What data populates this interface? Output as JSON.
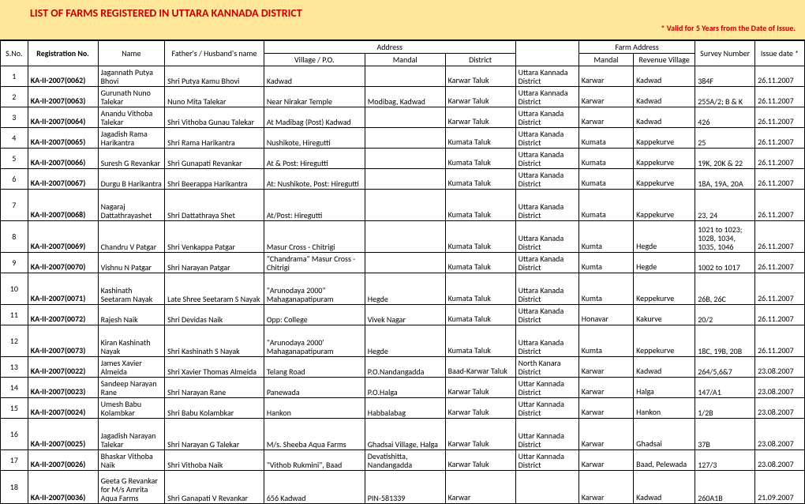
{
  "title": "LIST OF FARMS REGISTERED IN UTTARA KANNADA DISTRICT",
  "valid_note": "* Valid for 5 Years from the Date of Issue.",
  "headers": {
    "sno": "S.No.",
    "reg": "Registration No.",
    "name": "Name",
    "father": "Father's / Husband's name",
    "address": "Address",
    "village": "Village / P.O.",
    "mandal": "Mandal",
    "district": "District",
    "farm_address": "Farm Address",
    "farm_mandal": "Mandal",
    "rev_village": "Revenue Village",
    "survey": "Survey Number",
    "issue": "Issue date *"
  },
  "rows": [
    {
      "sno": "1",
      "reg": "KA-II-2007(0062)",
      "name": "Jagannath Putya Bhovi",
      "father": "Shri Putya Kamu Bhovi",
      "village": "Kadwad",
      "mandal": "",
      "district": "Karwar Taluk",
      "farm_district": "Uttara  Kannada District",
      "farm_mandal": "Karwar",
      "rev_village": "Kadwad",
      "survey": "384F",
      "issue": "26.11.2007"
    },
    {
      "sno": "2",
      "reg": "KA-II-2007(0063)",
      "name": "Gurunath Nuno Talekar",
      "father": "Nuno Mita Talekar",
      "village": "Near Nirakar Temple",
      "mandal": "Modibag, Kadwad",
      "district": "Karwar Taluk",
      "farm_district": "Uttara  Kannada District",
      "farm_mandal": "Karwar",
      "rev_village": "Kadwad",
      "survey": "255A/2; B & K",
      "issue": "26.11.2007"
    },
    {
      "sno": "3",
      "reg": "KA-II-2007(0064)",
      "name": "Anandu Vithoba Talekar",
      "father": "Shri Vithoba Gunau Talekar",
      "village": "At Madibag (Post) Kadwad",
      "mandal": "",
      "district": "Karwar Taluk",
      "farm_district": "Uttara  Kanada District",
      "farm_mandal": "Karwar",
      "rev_village": "Kadwad",
      "survey": "426",
      "issue": "26.11.2007"
    },
    {
      "sno": "4",
      "reg": "KA-II-2007(0065)",
      "name": "Jagadish Rama Harikantra",
      "father": "Shri Rama Harikantra",
      "village": "Nushikote, Hiregutti",
      "mandal": "",
      "district": "Kumata Taluk",
      "farm_district": "Uttara  Kanada District",
      "farm_mandal": "Kumata",
      "rev_village": "Kappekurve",
      "survey": "25",
      "issue": "26.11.2007"
    },
    {
      "sno": "5",
      "reg": "KA-II-2007(0066)",
      "name": "Suresh G Revankar",
      "father": "Shri Gunapati Revankar",
      "village": "At & Post: Hiregutti",
      "mandal": "",
      "district": "Kumata Taluk",
      "farm_district": "Uttara  Kanada District",
      "farm_mandal": "Kumata",
      "rev_village": "Kappekurve",
      "survey": "19K, 20K & 22",
      "issue": "26.11.2007"
    },
    {
      "sno": "6",
      "reg": "KA-II-2007(0067)",
      "name": "Durgu B Harikantra",
      "father": "Shri Beerappa Harikantra",
      "village": "At: Nushikote, Post: Hiregutti",
      "mandal": "",
      "district": "Kumata Taluk",
      "farm_district": "Uttara  Kanada District",
      "farm_mandal": "Kumata",
      "rev_village": "Kappekurve",
      "survey": "18A, 19A, 20A",
      "issue": "26.11.2007"
    },
    {
      "sno": "7",
      "reg": "KA-II-2007(0068)",
      "name": "Nagaraj Dattathrayashet",
      "father": "Shri Dattathraya Shet",
      "village": "At/Post: Hiregutti",
      "mandal": "",
      "district": "Kumata Taluk",
      "farm_district": "Uttara  Kanada District",
      "farm_mandal": "Kumata",
      "rev_village": "Kappekurve",
      "survey": "23, 24",
      "issue": "26.11.2007",
      "tall": true
    },
    {
      "sno": "8",
      "reg": "KA-II-2007(0069)",
      "name": "Chandru V Patgar",
      "father": "Shri Venkappa Patgar",
      "village": "Masur Cross - Chitrigi",
      "mandal": "",
      "district": "Kumata Taluk",
      "farm_district": "Uttara  Kanada District",
      "farm_mandal": "Kumta",
      "rev_village": "Hegde",
      "survey": "1021 to 1023; 1028, 1034, 1035, 1046",
      "issue": "26.11.2007",
      "tall": true
    },
    {
      "sno": "9",
      "reg": "KA-II-2007(0070)",
      "name": "Vishnu N Patgar",
      "father": "Shri Narayan Patgar",
      "village": "\"Chandrama\" Masur Cross - Chitrigi",
      "mandal": "",
      "district": "Kumata Taluk",
      "farm_district": "Uttara  Kanada District",
      "farm_mandal": "Kumta",
      "rev_village": "Hegde",
      "survey": "1002 to 1017",
      "issue": "26.11.2007"
    },
    {
      "sno": "10",
      "reg": "KA-II-2007(0071)",
      "name": "Kashinath Seetaram Nayak",
      "father": "Late Shree Seetaram S Nayak",
      "village": "\"Arunodaya 2000\" Mahaganapatipuram",
      "mandal": "Hegde",
      "district": "Kumata Taluk",
      "farm_district": "Uttara  Kanada District",
      "farm_mandal": "Kumta",
      "rev_village": "Keppekurve",
      "survey": "26B, 26C",
      "issue": "26.11.2007",
      "tall": true
    },
    {
      "sno": "11",
      "reg": "KA-II-2007(0072)",
      "name": "Rajesh Naik",
      "father": "Shri Devidas Naik",
      "village": "Opp: College",
      "mandal": "Vivek Nagar",
      "district": "Kumata Taluk",
      "farm_district": "Uttara  Kanada District",
      "farm_mandal": "Honavar",
      "rev_village": "Kakurve",
      "survey": "20/2",
      "issue": "26.11.2007"
    },
    {
      "sno": "12",
      "reg": "KA-II-2007(0073)",
      "name": "Kiran Kashinath Nayak",
      "father": "Shri Kashinath S Nayak",
      "village": "\"Arunodaya 2000' Mahaganapatipuram",
      "mandal": "Hegde",
      "district": "Kumata Taluk",
      "farm_district": "Uttara  Kanada District",
      "farm_mandal": "Kumta",
      "rev_village": "Keppekurve",
      "survey": "18C, 19B, 20B",
      "issue": "26.11.2007",
      "tall": true
    },
    {
      "sno": "13",
      "reg": "KA-II-2007(0022)",
      "name": "James Xavier Almeida",
      "father": "Shri Xavier Thomas Almeida",
      "village": "Telang Road",
      "mandal": "P.O.Nandangadda",
      "district": "Baad-Karwar Taluk",
      "farm_district": "North Kanara District",
      "farm_mandal": "Karwar",
      "rev_village": "Kadwad",
      "survey": "264/5,6&7",
      "issue": "23.08.2007"
    },
    {
      "sno": "14",
      "reg": "KA-II-2007(0023)",
      "name": "Sandeep Narayan Rane",
      "father": "Shri Narayan Rane",
      "village": "Panewada",
      "mandal": "P.O.Halga",
      "district": "Karwar Taluk",
      "farm_district": "Uttar Kannada District",
      "farm_mandal": "Karwar",
      "rev_village": "Halga",
      "survey": "147/A1",
      "issue": "23.08.2007"
    },
    {
      "sno": "15",
      "reg": "KA-II-2007(0024)",
      "name": "Umesh Babu Kolambkar",
      "father": "Shri Babu Kolambkar",
      "village": "Hankon",
      "mandal": "Habbalabag",
      "district": "Karwar Taluk",
      "farm_district": "Uttar Kannada District",
      "farm_mandal": "Karwar",
      "rev_village": "Hankon",
      "survey": "1/2B",
      "issue": "23.08.2007"
    },
    {
      "sno": "16",
      "reg": "KA-II-2007(0025)",
      "name": "Jagadish Narayan Talekar",
      "father": "Shri Narayan G Talekar",
      "village": "M/s. Sheeba Aqua Farms",
      "mandal": "Ghadsai Village, Halga",
      "district": "Karwar Taluk",
      "farm_district": "Uttar Kannada District",
      "farm_mandal": "Karwar",
      "rev_village": "Ghadsai",
      "survey": "37B",
      "issue": "23.08.2007",
      "tall": true
    },
    {
      "sno": "17",
      "reg": "KA-II-2007(0026)",
      "name": "Bhaskar Vithoba Naik",
      "father": "Shri Vithoba Naik",
      "village": "\"Vithob Rukmini\", Baad",
      "mandal": "Devatishitta, Nandangadda",
      "district": "Karwar Taluk",
      "farm_district": "Uttar Kannada District",
      "farm_mandal": "Karwar",
      "rev_village": "Baad, Pelewada",
      "survey": "127/3",
      "issue": "23.08.2007"
    },
    {
      "sno": "18",
      "reg": "KA-II-2007(0036)",
      "name": "Geeta G Revankar for M/s Amrita Aqua Farms",
      "father": "Shri Ganapati V Revankar",
      "village": "656 Kadwad",
      "mandal": "PIN-581339",
      "district": "Karwar",
      "farm_district": "",
      "farm_mandal": "Karwar",
      "rev_village": "Kadwad",
      "survey": "260A1B",
      "issue": "21.09.2007",
      "tall3": true
    }
  ]
}
